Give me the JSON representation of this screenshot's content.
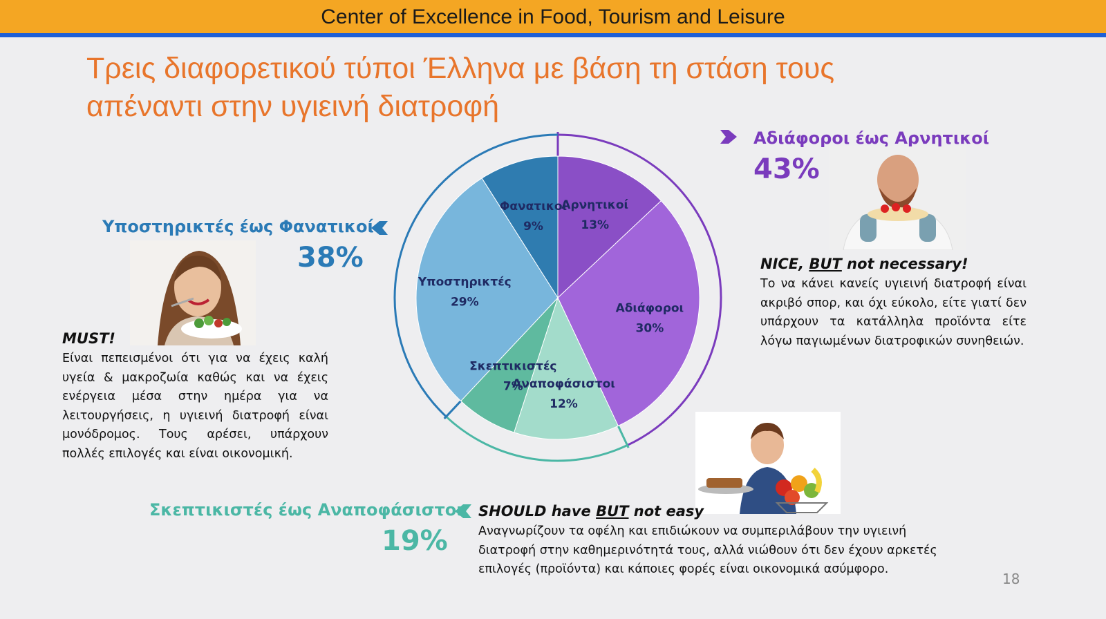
{
  "header": {
    "title": "Center of Excellence in Food, Tourism and Leisure"
  },
  "slide": {
    "title_line1": "Τρεις διαφορετικού τύποι Έλληνα με βάση τη στάση τους",
    "title_line2": "απέναντι στην υγιεινή διατροφή",
    "page_number": "18"
  },
  "segments": {
    "supporters": {
      "heading": "Υποστηρικτές  έως Φανατικοί",
      "percent": "38%",
      "sub_heading": "MUST!",
      "body": "Είναι πεπεισμένοι ότι για να έχεις καλή υγεία & μακροζωία καθώς και να έχεις ενέργεια μέσα στην ημέρα για να λειτουργήσεις, η υγιεινή διατροφή είναι μονόδρομος. Τους αρέσει, υπάρχουν πολλές επιλογές και είναι οικονομική."
    },
    "indifferent": {
      "heading": "Αδιάφοροι έως Αρνητικοί",
      "percent": "43%",
      "sub_heading_pre": "NICE, ",
      "sub_heading_u": "BUT",
      "sub_heading_post": " not necessary!",
      "body": "Το να κάνει κανείς υγιεινή διατροφή είναι ακριβό σπορ, και όχι εύκολο, είτε γιατί δεν υπάρχουν τα κατάλληλα προϊόντα είτε λόγω παγιωμένων διατροφικών συνηθειών."
    },
    "skeptics": {
      "heading": "Σκεπτικιστές  έως Αναποφάσιστοι",
      "percent": "19%",
      "sub_heading_pre": "SHOULD have ",
      "sub_heading_u": "BUT",
      "sub_heading_post": " not easy",
      "body": "Αναγνωρίζουν τα οφέλη και επιδιώκουν  να συμπεριλάβουν την υγιεινή διατροφή στην καθημερινότητά τους, αλλά νιώθουν ότι δεν έχουν αρκετές επιλογές (προϊόντα) και κάποιες φορές είναι  οικονομικά ασύμφορο."
    }
  },
  "colors": {
    "header": "#f4a623",
    "header_rule": "#1e5fd6",
    "title": "#e8752b",
    "blue": "#2a7ab6",
    "purple": "#7a3bbd",
    "teal": "#4bb7a5"
  },
  "icons": [
    "chevron-left-icon",
    "chevron-right-icon"
  ],
  "chart_data": {
    "type": "pie",
    "title": "",
    "start_angle_deg": 0,
    "direction": "clockwise",
    "slices": [
      {
        "label": "Αρνητικοί",
        "value": 13,
        "value_label": "13%",
        "color": "#8a4fc6"
      },
      {
        "label": "Αδιάφοροι",
        "value": 30,
        "value_label": "30%",
        "color": "#a165da"
      },
      {
        "label": "Αναποφάσιστοι",
        "value": 12,
        "value_label": "12%",
        "color": "#a3dccb"
      },
      {
        "label": "Σκεπτικιστές",
        "value": 7,
        "value_label": "7%",
        "color": "#5fba9f"
      },
      {
        "label": "Υποστηρικτές",
        "value": 29,
        "value_label": "29%",
        "color": "#78b6dc"
      },
      {
        "label": "Φανατικοί",
        "value": 9,
        "value_label": "9%",
        "color": "#2f7cb0"
      }
    ],
    "groups": [
      {
        "name": "Αδιάφοροι έως Αρνητικοί",
        "value": 43,
        "color": "#7a3bbd"
      },
      {
        "name": "Σκεπτικιστές έως Αναποφάσιστοι",
        "value": 19,
        "color": "#4bb7a5"
      },
      {
        "name": "Υποστηρικτές έως Φανατικοί",
        "value": 38,
        "color": "#2a7ab6"
      }
    ]
  }
}
